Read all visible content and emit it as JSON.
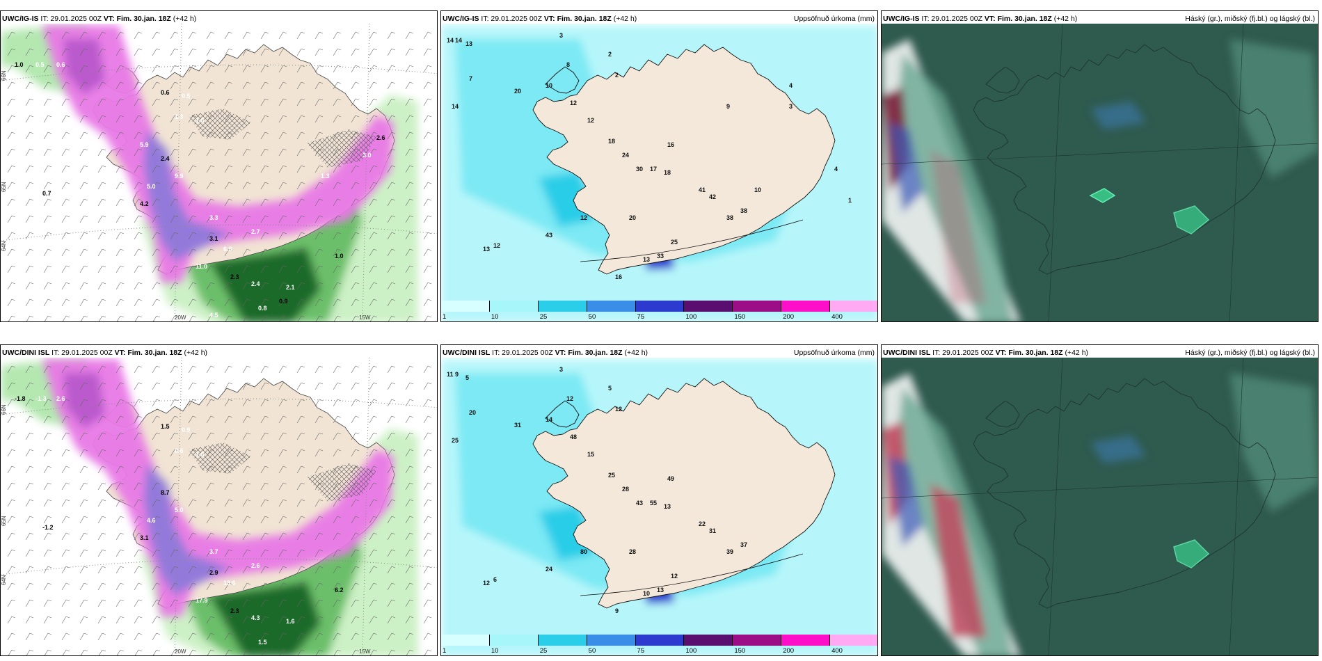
{
  "panels": [
    {
      "model": "UWC/IG-IS",
      "it": "IT: 29.01.2025 00Z",
      "vt_label": "VT:",
      "vt": "Fim. 30.jan. 18Z",
      "lead": "(+42 h)",
      "right": ""
    },
    {
      "model": "UWC/IG-IS",
      "it": "IT: 29.01.2025 00Z",
      "vt_label": "VT:",
      "vt": "Fim. 30.jan. 18Z",
      "lead": "(+42 h)",
      "right": "Uppsöfnuð úrkoma (mm)"
    },
    {
      "model": "UWC/IG-IS",
      "it": "IT: 29.01.2025 00Z",
      "vt_label": "VT:",
      "vt": "Fim. 30.jan. 18Z",
      "lead": "(+42 h)",
      "right": "Háský (gr.), miðský (fj.bl.) og lágský (bl.)"
    },
    {
      "model": "UWC/DINI ISL",
      "it": "IT: 29.01.2025 00Z",
      "vt_label": "VT:",
      "vt": "Fim. 30.jan. 18Z",
      "lead": "(+42 h)",
      "right": ""
    },
    {
      "model": "UWC/DINI ISL",
      "it": "IT: 29.01.2025 00Z",
      "vt_label": "VT:",
      "vt": "Fim. 30.jan. 18Z",
      "lead": "(+42 h)",
      "right": "Uppsöfnuð úrkoma (mm)"
    },
    {
      "model": "UWC/DINI ISL",
      "it": "IT: 29.01.2025 00Z",
      "vt_label": "VT:",
      "vt": "Fim. 30.jan. 18Z",
      "lead": "(+42 h)",
      "right": "Háský (gr.), miðský (fj.bl.) og lágský (bl.)"
    }
  ],
  "precip_legend": {
    "labels": [
      "1",
      "10",
      "25",
      "50",
      "75",
      "100",
      "150",
      "200",
      "400"
    ],
    "colors": [
      "#d8ffff",
      "#a6f6fa",
      "#2ccde8",
      "#3a8ee8",
      "#2c3ad0",
      "#5a0e70",
      "#9c0e88",
      "#ff10c8",
      "#ffaaf2"
    ]
  },
  "axis_labels": {
    "lat_65": "65N",
    "lat_64": "64N",
    "lat_66": "66N",
    "lon_20": "20W",
    "lon_15": "15W"
  },
  "temp_values_top": [
    "1.0",
    "0.5",
    "0.6",
    "0.6",
    "0.5",
    "1.0",
    "0.7",
    "1.3",
    "1.6",
    "2.4",
    "9.9",
    "5.0",
    "4.2",
    "3.3",
    "2.7",
    "3.1",
    "11.0",
    "6.6",
    "2.3",
    "2.4",
    "2.1",
    "1.0",
    "0.8",
    "4.5",
    "0.9",
    "1.3",
    "3.0",
    "2.6",
    "5.9"
  ],
  "temp_values_bottom": [
    "-1.8",
    "-1.3",
    "2.6",
    "1.5",
    "0.9",
    "-1.2",
    "-1.2",
    "0.6",
    "1.6",
    "8.7",
    "5.0",
    "4.6",
    "3.1",
    "3.7",
    "2.6",
    "2.9",
    "17.9",
    "13.6",
    "2.3",
    "4.3",
    "1.6",
    "6.2",
    "1.5"
  ],
  "precip_values_top": [
    "14",
    "14",
    "13",
    "3",
    "2",
    "7",
    "8",
    "2",
    "14",
    "20",
    "10",
    "12",
    "12",
    "18",
    "24",
    "30",
    "18",
    "16",
    "17",
    "12",
    "20",
    "41",
    "42",
    "38",
    "38",
    "43",
    "33",
    "25",
    "13",
    "16",
    "13",
    "12",
    "10",
    "9",
    "3",
    "1",
    "4",
    "4"
  ],
  "precip_values_bottom": [
    "11",
    "9",
    "5",
    "3",
    "5",
    "20",
    "12",
    "12",
    "25",
    "31",
    "14",
    "48",
    "15",
    "25",
    "28",
    "43",
    "13",
    "49",
    "55",
    "80",
    "28",
    "22",
    "31",
    "39",
    "37",
    "24",
    "13",
    "12",
    "10",
    "9",
    "12",
    "6"
  ],
  "colors": {
    "land": "#f1e4d4",
    "snow_pink": "#e878e6",
    "green_dark": "#1e6a2c",
    "cyan_base": "#b6f6fa",
    "cloud_dark": "#2f5a4e"
  }
}
